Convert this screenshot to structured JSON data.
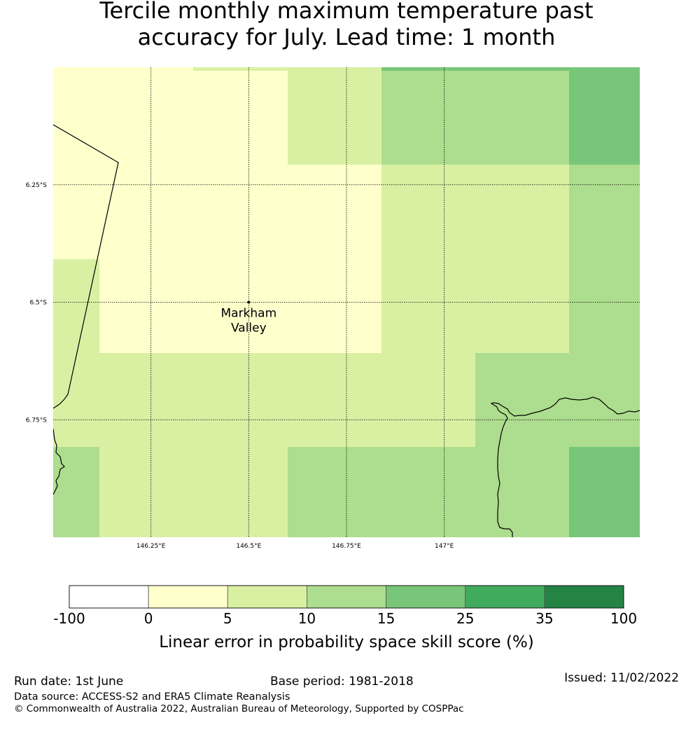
{
  "title": {
    "line1": "Tercile monthly maximum temperature past",
    "line2": "accuracy for July. Lead time: 1 month"
  },
  "map": {
    "lon_range": [
      146.0,
      147.5
    ],
    "lat_range": [
      -6.0,
      -7.0
    ],
    "lon_ticks": [
      {
        "value": 146.25,
        "label": "146.25°E"
      },
      {
        "value": 146.5,
        "label": "146.5°E"
      },
      {
        "value": 146.75,
        "label": "146.75°E"
      },
      {
        "value": 147.0,
        "label": "147°E"
      }
    ],
    "lat_ticks": [
      {
        "value": -6.25,
        "label": "6.25°S"
      },
      {
        "value": -6.5,
        "label": "6.5°S"
      },
      {
        "value": -6.75,
        "label": "6.75°S"
      }
    ],
    "location": {
      "name_line1": "Markham",
      "name_line2": "Valley",
      "lon": 146.5,
      "lat": -6.5
    }
  },
  "colorbar": {
    "label": "Linear error in probability space skill score (%)",
    "ticks": [
      "-100",
      "0",
      "5",
      "10",
      "15",
      "25",
      "35",
      "100"
    ],
    "colors": [
      "#ffffff",
      "#ffffcc",
      "#d9f0a3",
      "#addd8e",
      "#78c679",
      "#41ab5d",
      "#238443"
    ]
  },
  "footer": {
    "run_date": "Run date: 1st June",
    "base_period": "Base period: 1981-2018",
    "issued": "Issued: 11/02/2022",
    "data_source": "Data source: ACCESS-S2 and ERA5 Climate Reanalysis",
    "copyright": "© Commonwealth of Australia 2022, Australian Bureau of Meteorology, Supported by COSPPac"
  }
}
